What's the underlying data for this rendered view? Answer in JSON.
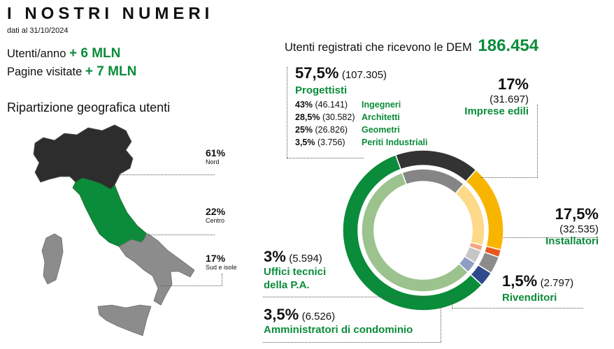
{
  "header": {
    "title": "I NOSTRI NUMERI",
    "subtitle": "dati al 31/10/2024"
  },
  "stats": [
    {
      "label": "Utenti/anno",
      "value": "+ 6 MLN"
    },
    {
      "label": "Pagine visitate",
      "value": "+ 7 MLN"
    }
  ],
  "geo": {
    "title": "Ripartizione geografica utenti",
    "regions": [
      {
        "pct": "61%",
        "label": "Nord",
        "color": "#2d2d2d"
      },
      {
        "pct": "22%",
        "label": "Centro",
        "color": "#0b8c3a"
      },
      {
        "pct": "17%",
        "label": "Sud e isole",
        "color": "#8c8c8c"
      }
    ]
  },
  "dem": {
    "label": "Utenti registrati che ricevono le DEM",
    "total": "186.454"
  },
  "colors": {
    "accent_green": "#0b8c3a",
    "dark": "#333333",
    "yellow": "#f7b500",
    "orange": "#e8571e",
    "grey": "#8c8c8c",
    "navy": "#2e4a8a"
  },
  "chart_data": {
    "type": "pie",
    "title": "",
    "total": 186454,
    "outer_ring": [
      {
        "name": "Progettisti",
        "pct": "57,5%",
        "count": "(107.305)",
        "value": 57.5,
        "color": "#0b8c3a"
      },
      {
        "name": "Imprese edili",
        "pct": "17%",
        "count": "(31.697)",
        "value": 17,
        "color": "#333333"
      },
      {
        "name": "Installatori",
        "pct": "17,5%",
        "count": "(32.535)",
        "value": 17.5,
        "color": "#f7b500"
      },
      {
        "name": "Rivenditori",
        "pct": "1,5%",
        "count": "(2.797)",
        "value": 1.5,
        "color": "#e8571e"
      },
      {
        "name": "Amministratori di condominio",
        "pct": "3,5%",
        "count": "(6.526)",
        "value": 3.5,
        "color": "#8c8c8c"
      },
      {
        "name": "Uffici tecnici della P.A.",
        "pct": "3%",
        "count": "(5.594)",
        "value": 3,
        "color": "#2e4a8a"
      }
    ],
    "inner_ring": [
      {
        "value": 57.5,
        "color": "#9cc28e"
      },
      {
        "value": 17,
        "color": "#858585"
      },
      {
        "value": 17.5,
        "color": "#fdd98a"
      },
      {
        "value": 1.5,
        "color": "#f2a680"
      },
      {
        "value": 3.5,
        "color": "#c6c6c6"
      },
      {
        "value": 3,
        "color": "#8e9ec4"
      }
    ],
    "progettisti_breakdown": [
      {
        "pct": "43%",
        "count": "(46.141)",
        "name": "Ingegneri"
      },
      {
        "pct": "28,5%",
        "count": "(30.582)",
        "name": "Architetti"
      },
      {
        "pct": "25%",
        "count": "(26.826)",
        "name": "Geometri"
      },
      {
        "pct": "3,5%",
        "count": "(3.756)",
        "name": "Periti Industriali"
      }
    ]
  }
}
